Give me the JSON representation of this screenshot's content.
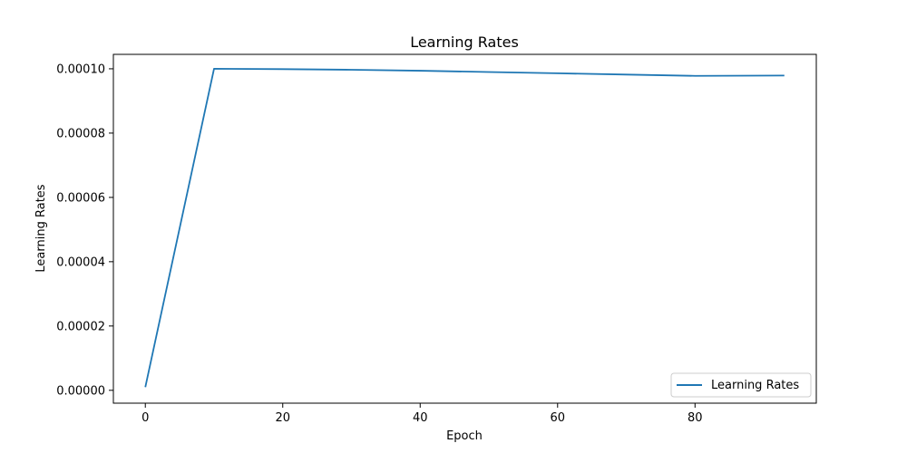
{
  "chart_data": {
    "type": "line",
    "title": "Learning Rates",
    "xlabel": "Epoch",
    "ylabel": "Learning Rates",
    "xlim": [
      -4.65,
      97.65
    ],
    "ylim": [
      -4e-06,
      0.00010449
    ],
    "x_ticks": [
      0,
      20,
      40,
      60,
      80
    ],
    "x_tick_labels": [
      "0",
      "20",
      "40",
      "60",
      "80"
    ],
    "y_ticks": [
      0,
      2e-05,
      4e-05,
      6e-05,
      8e-05,
      0.0001
    ],
    "y_tick_labels": [
      "0.00000",
      "0.00002",
      "0.00004",
      "0.00006",
      "0.00008",
      "0.00010"
    ],
    "grid": false,
    "legend": {
      "position": "lower-right"
    },
    "series": [
      {
        "name": "Learning Rates",
        "color": "#1f77b4",
        "x": [
          0,
          10,
          20,
          30,
          40,
          50,
          60,
          70,
          80,
          93
        ],
        "y": [
          1e-06,
          0.0001,
          9.99e-05,
          9.97e-05,
          9.94e-05,
          9.9e-05,
          9.86e-05,
          9.82e-05,
          9.78e-05,
          9.79e-05
        ]
      }
    ]
  }
}
